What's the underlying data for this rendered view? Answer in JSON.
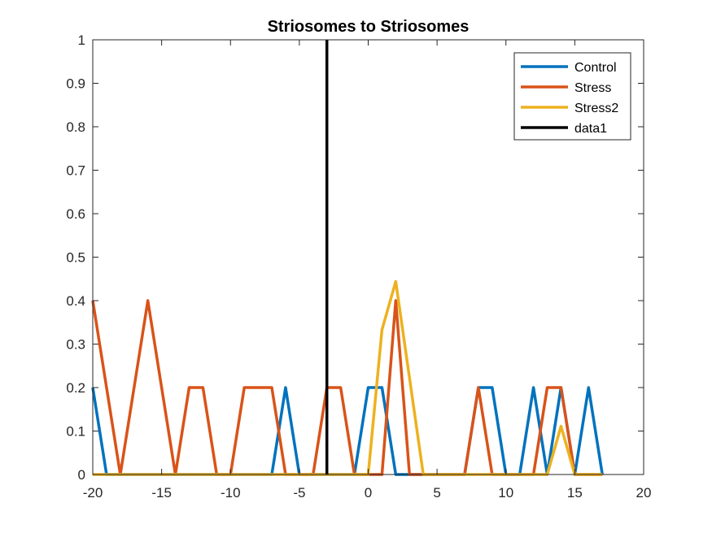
{
  "chart_data": {
    "type": "line",
    "title": "Striosomes to Striosomes",
    "xlabel": "",
    "ylabel": "",
    "xlim": [
      -20,
      20
    ],
    "ylim": [
      0,
      1
    ],
    "xticks": [
      -20,
      -15,
      -10,
      -5,
      0,
      5,
      10,
      15,
      20
    ],
    "yticks": [
      0,
      0.1,
      0.2,
      0.3,
      0.4,
      0.5,
      0.6,
      0.7,
      0.8,
      0.9,
      1
    ],
    "xtick_labels": [
      "-20",
      "-15",
      "-10",
      "-5",
      "0",
      "5",
      "10",
      "15",
      "20"
    ],
    "ytick_labels": [
      "0",
      "0.1",
      "0.2",
      "0.3",
      "0.4",
      "0.5",
      "0.6",
      "0.7",
      "0.8",
      "0.9",
      "1"
    ],
    "grid": false,
    "legend_position": "top-right",
    "series": [
      {
        "name": "Control",
        "color": "#0072BD",
        "x": [
          -20,
          -19,
          -18,
          -17,
          -16,
          -15,
          -14,
          -13,
          -12,
          -11,
          -10,
          -9,
          -8,
          -7,
          -6,
          -5,
          -4,
          -3,
          -2,
          -1,
          0,
          1,
          2,
          3,
          4,
          5,
          6,
          7,
          8,
          9,
          10,
          11,
          12,
          13,
          14,
          15,
          16,
          17
        ],
        "y": [
          0.2,
          0,
          0,
          0,
          0,
          0,
          0,
          0,
          0,
          0,
          0,
          0,
          0,
          0,
          0.2,
          0,
          0,
          0,
          0,
          0,
          0.2,
          0.2,
          0,
          0,
          0,
          0,
          0,
          0,
          0.2,
          0.2,
          0,
          0,
          0.2,
          0,
          0.2,
          0,
          0.2,
          0
        ]
      },
      {
        "name": "Stress",
        "color": "#D95319",
        "x": [
          -20,
          -19,
          -18,
          -17,
          -16,
          -15,
          -14,
          -13,
          -12,
          -11,
          -10,
          -9,
          -8,
          -7,
          -6,
          -5,
          -4,
          -3,
          -2,
          -1,
          0,
          1,
          2,
          3,
          4,
          5,
          6,
          7,
          8,
          9,
          10,
          11,
          12,
          13,
          14,
          15,
          16,
          17
        ],
        "y": [
          0.4,
          0.2,
          0,
          0.2,
          0.4,
          0.2,
          0,
          0.2,
          0.2,
          0,
          0,
          0.2,
          0.2,
          0.2,
          0,
          0,
          0,
          0.2,
          0.2,
          0,
          0,
          0,
          0.4,
          0,
          0,
          0,
          0,
          0,
          0.2,
          0,
          0,
          0,
          0,
          0.2,
          0.2,
          0,
          0,
          0
        ]
      },
      {
        "name": "Stress2",
        "color": "#EDB120",
        "x": [
          -20,
          -19,
          -18,
          -17,
          -16,
          -15,
          -14,
          -13,
          -12,
          -11,
          -10,
          -9,
          -8,
          -7,
          -6,
          -5,
          -4,
          -3,
          -2,
          -1,
          0,
          1,
          2,
          3,
          4,
          5,
          6,
          7,
          8,
          9,
          10,
          11,
          12,
          13,
          14,
          15,
          16,
          17
        ],
        "y": [
          0,
          0,
          0,
          0,
          0,
          0,
          0,
          0,
          0,
          0,
          0,
          0,
          0,
          0,
          0,
          0,
          0,
          0,
          0,
          0,
          0,
          0.333,
          0.444,
          0.222,
          0,
          0,
          0,
          0,
          0,
          0,
          0,
          0,
          0,
          0,
          0.111,
          0,
          0,
          0
        ]
      },
      {
        "name": "data1",
        "color": "#000000",
        "x": [
          -3,
          -3
        ],
        "y": [
          0,
          1
        ]
      }
    ]
  }
}
